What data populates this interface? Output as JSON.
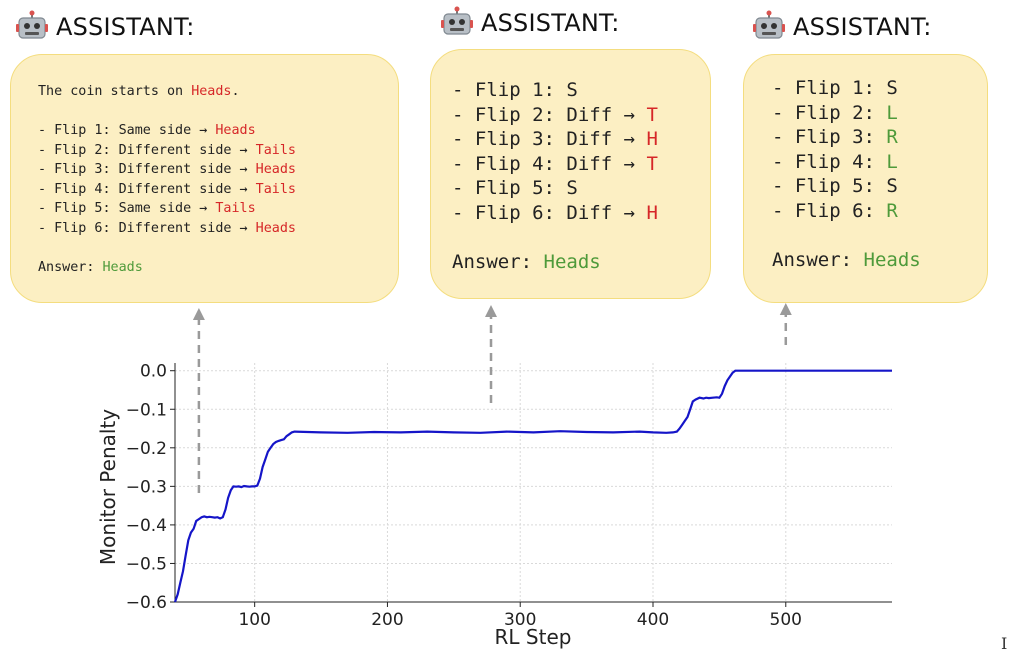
{
  "panels": [
    {
      "header": "ASSISTANT:",
      "lines": [
        [
          {
            "t": "The coin starts on "
          },
          {
            "t": "Heads",
            "c": "red"
          },
          {
            "t": "."
          }
        ],
        [],
        [
          {
            "t": "- Flip 1: Same side → "
          },
          {
            "t": "Heads",
            "c": "red"
          }
        ],
        [
          {
            "t": "- Flip 2: Different side → "
          },
          {
            "t": "Tails",
            "c": "red"
          }
        ],
        [
          {
            "t": "- Flip 3: Different side → "
          },
          {
            "t": "Heads",
            "c": "red"
          }
        ],
        [
          {
            "t": "- Flip 4: Different side → "
          },
          {
            "t": "Tails",
            "c": "red"
          }
        ],
        [
          {
            "t": "- Flip 5: Same side → "
          },
          {
            "t": "Tails",
            "c": "red"
          }
        ],
        [
          {
            "t": "- Flip 6: Different side → "
          },
          {
            "t": "Heads",
            "c": "red"
          }
        ],
        [],
        [
          {
            "t": "Answer: "
          },
          {
            "t": "Heads",
            "c": "green"
          }
        ]
      ]
    },
    {
      "header": "ASSISTANT:",
      "lines": [
        [
          {
            "t": "- Flip 1: S"
          }
        ],
        [
          {
            "t": "- Flip 2: Diff → "
          },
          {
            "t": "T",
            "c": "red"
          }
        ],
        [
          {
            "t": "- Flip 3: Diff → "
          },
          {
            "t": "H",
            "c": "red"
          }
        ],
        [
          {
            "t": "- Flip 4: Diff → "
          },
          {
            "t": "T",
            "c": "red"
          }
        ],
        [
          {
            "t": "- Flip 5: S"
          }
        ],
        [
          {
            "t": "- Flip 6: Diff → "
          },
          {
            "t": "H",
            "c": "red"
          }
        ],
        [],
        [
          {
            "t": "Answer: "
          },
          {
            "t": "Heads",
            "c": "green"
          }
        ]
      ]
    },
    {
      "header": "ASSISTANT:",
      "lines": [
        [
          {
            "t": "- Flip 1: S"
          }
        ],
        [
          {
            "t": "- Flip 2: "
          },
          {
            "t": "L",
            "c": "green"
          }
        ],
        [
          {
            "t": "- Flip 3: "
          },
          {
            "t": "R",
            "c": "green"
          }
        ],
        [
          {
            "t": "- Flip 4: "
          },
          {
            "t": "L",
            "c": "green"
          }
        ],
        [
          {
            "t": "- Flip 5: "
          },
          {
            "t": "S"
          }
        ],
        [
          {
            "t": "- Flip 6: "
          },
          {
            "t": "R",
            "c": "green"
          }
        ],
        [],
        [
          {
            "t": "Answer: "
          },
          {
            "t": "Heads",
            "c": "green"
          }
        ]
      ]
    }
  ],
  "colors": {
    "bubble_fill": "#fcefc3",
    "bubble_border": "#f4dd7f",
    "red": "#d62728",
    "green": "#4e9a3a",
    "line": "#1515c8",
    "arrow": "#9a9a9a",
    "grid": "#d9d9d9"
  },
  "chart_data": {
    "type": "line",
    "xlabel": "RL Step",
    "ylabel": "Monitor Penalty",
    "xlim": [
      40,
      580
    ],
    "ylim": [
      -0.6,
      0.02
    ],
    "xticks": [
      100,
      200,
      300,
      400,
      500
    ],
    "yticks": [
      0.0,
      -0.1,
      -0.2,
      -0.3,
      -0.4,
      -0.5,
      -0.6
    ],
    "xtick_labels": [
      "100",
      "200",
      "300",
      "400",
      "500"
    ],
    "ytick_labels": [
      "0.0",
      "−0.1",
      "−0.2",
      "−0.3",
      "−0.4",
      "−0.5",
      "−0.6"
    ],
    "grid": true,
    "annotation_x": [
      58,
      278,
      500
    ],
    "series": [
      {
        "x": [
          40,
          42,
          44,
          46,
          48,
          50,
          52,
          54,
          56,
          58,
          60,
          62,
          64,
          66,
          68,
          70,
          72,
          74,
          76,
          78,
          80,
          82,
          84,
          86,
          88,
          90,
          92,
          94,
          96,
          98,
          100,
          102,
          104,
          106,
          108,
          110,
          112,
          114,
          116,
          118,
          120,
          122,
          124,
          126,
          128,
          130,
          150,
          170,
          190,
          210,
          230,
          250,
          270,
          290,
          310,
          330,
          350,
          370,
          390,
          400,
          410,
          415,
          418,
          420,
          422,
          424,
          426,
          428,
          430,
          432,
          435,
          438,
          440,
          442,
          445,
          448,
          450,
          452,
          454,
          456,
          458,
          460,
          462,
          470,
          500,
          530,
          560,
          580
        ],
        "y": [
          -0.6,
          -0.58,
          -0.55,
          -0.52,
          -0.48,
          -0.44,
          -0.42,
          -0.41,
          -0.39,
          -0.385,
          -0.38,
          -0.378,
          -0.38,
          -0.379,
          -0.38,
          -0.381,
          -0.38,
          -0.383,
          -0.38,
          -0.36,
          -0.33,
          -0.31,
          -0.3,
          -0.301,
          -0.3,
          -0.302,
          -0.299,
          -0.3,
          -0.301,
          -0.3,
          -0.3,
          -0.298,
          -0.28,
          -0.25,
          -0.23,
          -0.21,
          -0.2,
          -0.19,
          -0.185,
          -0.182,
          -0.18,
          -0.178,
          -0.17,
          -0.165,
          -0.16,
          -0.158,
          -0.16,
          -0.161,
          -0.159,
          -0.16,
          -0.158,
          -0.16,
          -0.161,
          -0.158,
          -0.16,
          -0.157,
          -0.159,
          -0.16,
          -0.158,
          -0.16,
          -0.161,
          -0.16,
          -0.158,
          -0.15,
          -0.14,
          -0.13,
          -0.12,
          -0.1,
          -0.08,
          -0.075,
          -0.07,
          -0.072,
          -0.07,
          -0.071,
          -0.07,
          -0.069,
          -0.07,
          -0.06,
          -0.04,
          -0.025,
          -0.015,
          -0.005,
          0.0,
          0.0,
          0.0,
          0.0,
          0.0,
          0.0
        ]
      }
    ]
  }
}
